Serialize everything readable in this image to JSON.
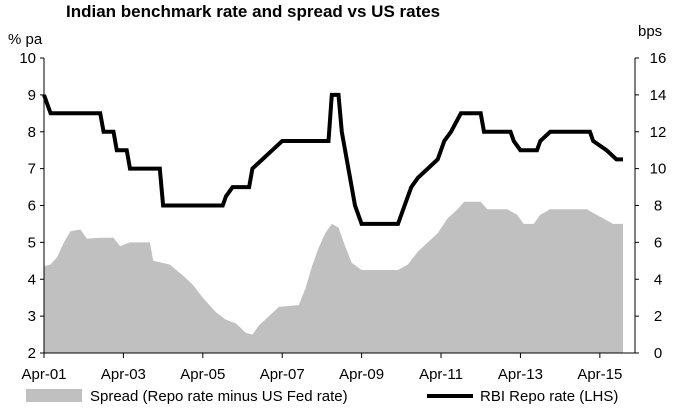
{
  "chart_data": {
    "type": "line",
    "title": "Indian benchmark rate and spread vs US rates",
    "y_left_unit": "% pa",
    "y_right_unit": "bps",
    "y_left_range": [
      2,
      10
    ],
    "y_right_range": [
      0,
      16
    ],
    "y_left_ticks": [
      "2",
      "3",
      "4",
      "5",
      "6",
      "7",
      "8",
      "9",
      "10"
    ],
    "y_right_ticks": [
      "0",
      "2",
      "4",
      "6",
      "8",
      "10",
      "12",
      "14",
      "16"
    ],
    "x_range": [
      "2001-04",
      "2015-11"
    ],
    "x_tick_labels": [
      "Apr-01",
      "Apr-03",
      "Apr-05",
      "Apr-07",
      "Apr-09",
      "Apr-11",
      "Apr-13",
      "Apr-15"
    ],
    "x_ticks": [
      "2001-04",
      "2003-04",
      "2005-04",
      "2007-04",
      "2009-04",
      "2011-04",
      "2013-04",
      "2015-04"
    ],
    "grid": false,
    "legend_position": "bottom",
    "series": [
      {
        "name": "Spread (Repo rate minus US Fed rate)",
        "type": "area",
        "axis": "right",
        "color": "#c0c0c0",
        "points": [
          [
            "2001-04",
            4.7
          ],
          [
            "2001-06",
            4.8
          ],
          [
            "2001-08",
            5.2
          ],
          [
            "2001-10",
            6.0
          ],
          [
            "2001-12",
            6.6
          ],
          [
            "2002-03",
            6.7
          ],
          [
            "2002-05",
            6.2
          ],
          [
            "2002-09",
            6.25
          ],
          [
            "2003-01",
            6.25
          ],
          [
            "2003-03",
            5.8
          ],
          [
            "2003-06",
            6.0
          ],
          [
            "2003-12",
            6.0
          ],
          [
            "2004-01",
            5.0
          ],
          [
            "2004-06",
            4.8
          ],
          [
            "2004-10",
            4.2
          ],
          [
            "2005-01",
            3.7
          ],
          [
            "2005-04",
            3.0
          ],
          [
            "2005-08",
            2.2
          ],
          [
            "2005-11",
            1.8
          ],
          [
            "2006-02",
            1.6
          ],
          [
            "2006-05",
            1.1
          ],
          [
            "2006-07",
            1.0
          ],
          [
            "2006-09",
            1.5
          ],
          [
            "2006-12",
            2.0
          ],
          [
            "2007-03",
            2.5
          ],
          [
            "2007-09",
            2.6
          ],
          [
            "2007-11",
            3.5
          ],
          [
            "2008-01",
            4.7
          ],
          [
            "2008-03",
            5.7
          ],
          [
            "2008-05",
            6.5
          ],
          [
            "2008-07",
            7.0
          ],
          [
            "2008-09",
            6.8
          ],
          [
            "2008-11",
            5.8
          ],
          [
            "2009-01",
            4.9
          ],
          [
            "2009-04",
            4.5
          ],
          [
            "2009-09",
            4.5
          ],
          [
            "2010-03",
            4.5
          ],
          [
            "2010-06",
            4.8
          ],
          [
            "2010-09",
            5.5
          ],
          [
            "2010-12",
            6.0
          ],
          [
            "2011-03",
            6.5
          ],
          [
            "2011-06",
            7.3
          ],
          [
            "2011-09",
            7.8
          ],
          [
            "2011-11",
            8.2
          ],
          [
            "2012-04",
            8.2
          ],
          [
            "2012-06",
            7.8
          ],
          [
            "2012-12",
            7.8
          ],
          [
            "2013-03",
            7.5
          ],
          [
            "2013-05",
            7.0
          ],
          [
            "2013-08",
            7.0
          ],
          [
            "2013-10",
            7.5
          ],
          [
            "2014-01",
            7.8
          ],
          [
            "2014-06",
            7.8
          ],
          [
            "2014-12",
            7.8
          ],
          [
            "2015-03",
            7.5
          ],
          [
            "2015-06",
            7.2
          ],
          [
            "2015-08",
            7.0
          ],
          [
            "2015-11",
            7.0
          ]
        ]
      },
      {
        "name": "RBI Repo rate (LHS)",
        "type": "line",
        "axis": "left",
        "color": "#000000",
        "points": [
          [
            "2001-04",
            9.0
          ],
          [
            "2001-06",
            8.5
          ],
          [
            "2002-09",
            8.5
          ],
          [
            "2002-10",
            8.0
          ],
          [
            "2003-01",
            8.0
          ],
          [
            "2003-02",
            7.5
          ],
          [
            "2003-05",
            7.5
          ],
          [
            "2003-06",
            7.0
          ],
          [
            "2004-03",
            7.0
          ],
          [
            "2004-04",
            6.0
          ],
          [
            "2005-10",
            6.0
          ],
          [
            "2005-11",
            6.25
          ],
          [
            "2006-01",
            6.5
          ],
          [
            "2006-06",
            6.5
          ],
          [
            "2006-07",
            7.0
          ],
          [
            "2006-10",
            7.25
          ],
          [
            "2007-01",
            7.5
          ],
          [
            "2007-04",
            7.75
          ],
          [
            "2008-06",
            7.75
          ],
          [
            "2008-07",
            9.0
          ],
          [
            "2008-09",
            9.0
          ],
          [
            "2008-10",
            8.0
          ],
          [
            "2008-12",
            7.0
          ],
          [
            "2009-02",
            6.0
          ],
          [
            "2009-04",
            5.5
          ],
          [
            "2010-03",
            5.5
          ],
          [
            "2010-05",
            6.0
          ],
          [
            "2010-07",
            6.5
          ],
          [
            "2010-09",
            6.75
          ],
          [
            "2010-12",
            7.0
          ],
          [
            "2011-03",
            7.25
          ],
          [
            "2011-05",
            7.75
          ],
          [
            "2011-07",
            8.0
          ],
          [
            "2011-10",
            8.5
          ],
          [
            "2012-04",
            8.5
          ],
          [
            "2012-05",
            8.0
          ],
          [
            "2013-01",
            8.0
          ],
          [
            "2013-02",
            7.75
          ],
          [
            "2013-04",
            7.5
          ],
          [
            "2013-09",
            7.5
          ],
          [
            "2013-10",
            7.75
          ],
          [
            "2014-01",
            8.0
          ],
          [
            "2015-01",
            8.0
          ],
          [
            "2015-02",
            7.75
          ],
          [
            "2015-06",
            7.5
          ],
          [
            "2015-09",
            7.25
          ],
          [
            "2015-11",
            7.25
          ]
        ]
      }
    ]
  }
}
